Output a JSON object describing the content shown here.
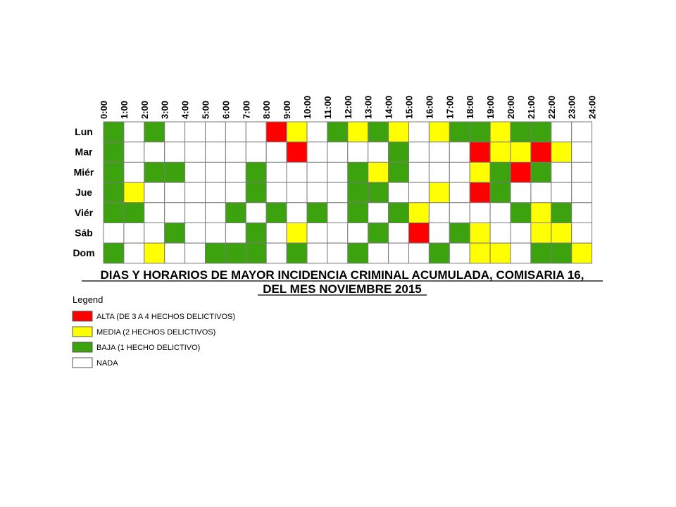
{
  "chart_data": {
    "type": "heatmap",
    "title_lines": [
      "DIAS Y HORARIOS DE MAYOR INCIDENCIA CRIMINAL ACUMULADA, COMISARIA 16,",
      "DEL MES NOVIEMBRE 2015"
    ],
    "hours": [
      "0:00",
      "1:00",
      "2:00",
      "3:00",
      "4:00",
      "5:00",
      "6:00",
      "7:00",
      "8:00",
      "9:00",
      "10:00",
      "11:00",
      "12:00",
      "13:00",
      "14:00",
      "15:00",
      "16:00",
      "17:00",
      "18:00",
      "19:00",
      "20:00",
      "21:00",
      "22:00",
      "23:00",
      "24:00"
    ],
    "days": [
      "Lun",
      "Mar",
      "Miér",
      "Jue",
      "Viér",
      "Sáb",
      "Dom"
    ],
    "levels": [
      [
        1,
        0,
        1,
        0,
        0,
        0,
        0,
        0,
        3,
        2,
        0,
        1,
        2,
        1,
        2,
        0,
        2,
        1,
        1,
        2,
        1,
        1,
        0,
        0
      ],
      [
        1,
        0,
        0,
        0,
        0,
        0,
        0,
        0,
        0,
        3,
        0,
        0,
        0,
        0,
        1,
        0,
        0,
        0,
        3,
        2,
        2,
        3,
        2,
        0
      ],
      [
        1,
        0,
        1,
        1,
        0,
        0,
        0,
        1,
        0,
        0,
        0,
        0,
        1,
        2,
        1,
        0,
        0,
        0,
        2,
        1,
        3,
        1,
        0,
        0
      ],
      [
        1,
        2,
        0,
        0,
        0,
        0,
        0,
        1,
        0,
        0,
        0,
        0,
        1,
        1,
        0,
        0,
        2,
        0,
        3,
        1,
        0,
        0,
        0,
        0
      ],
      [
        1,
        1,
        0,
        0,
        0,
        0,
        1,
        0,
        1,
        0,
        1,
        0,
        1,
        0,
        1,
        2,
        0,
        0,
        0,
        0,
        1,
        2,
        1,
        0
      ],
      [
        0,
        0,
        0,
        1,
        0,
        0,
        0,
        1,
        0,
        2,
        0,
        0,
        0,
        1,
        0,
        3,
        0,
        1,
        2,
        0,
        0,
        2,
        2,
        0
      ],
      [
        1,
        0,
        2,
        0,
        0,
        1,
        1,
        1,
        0,
        1,
        0,
        0,
        1,
        0,
        0,
        0,
        1,
        0,
        2,
        2,
        0,
        1,
        1,
        2
      ]
    ],
    "level_colors": [
      "#ffffff",
      "#3ca30e",
      "#ffff00",
      "#ff0000"
    ],
    "legend": {
      "title": "Legend",
      "entries": [
        {
          "label": "ALTA (DE 3 A 4 HECHOS DELICTIVOS)",
          "color": "#ff0000"
        },
        {
          "label": "MEDIA (2 HECHOS DELICTIVOS)",
          "color": "#ffff00"
        },
        {
          "label": "BAJA (1 HECHO DELICTIVO)",
          "color": "#3ca30e"
        },
        {
          "label": "NADA",
          "color": "#ffffff"
        }
      ]
    }
  }
}
